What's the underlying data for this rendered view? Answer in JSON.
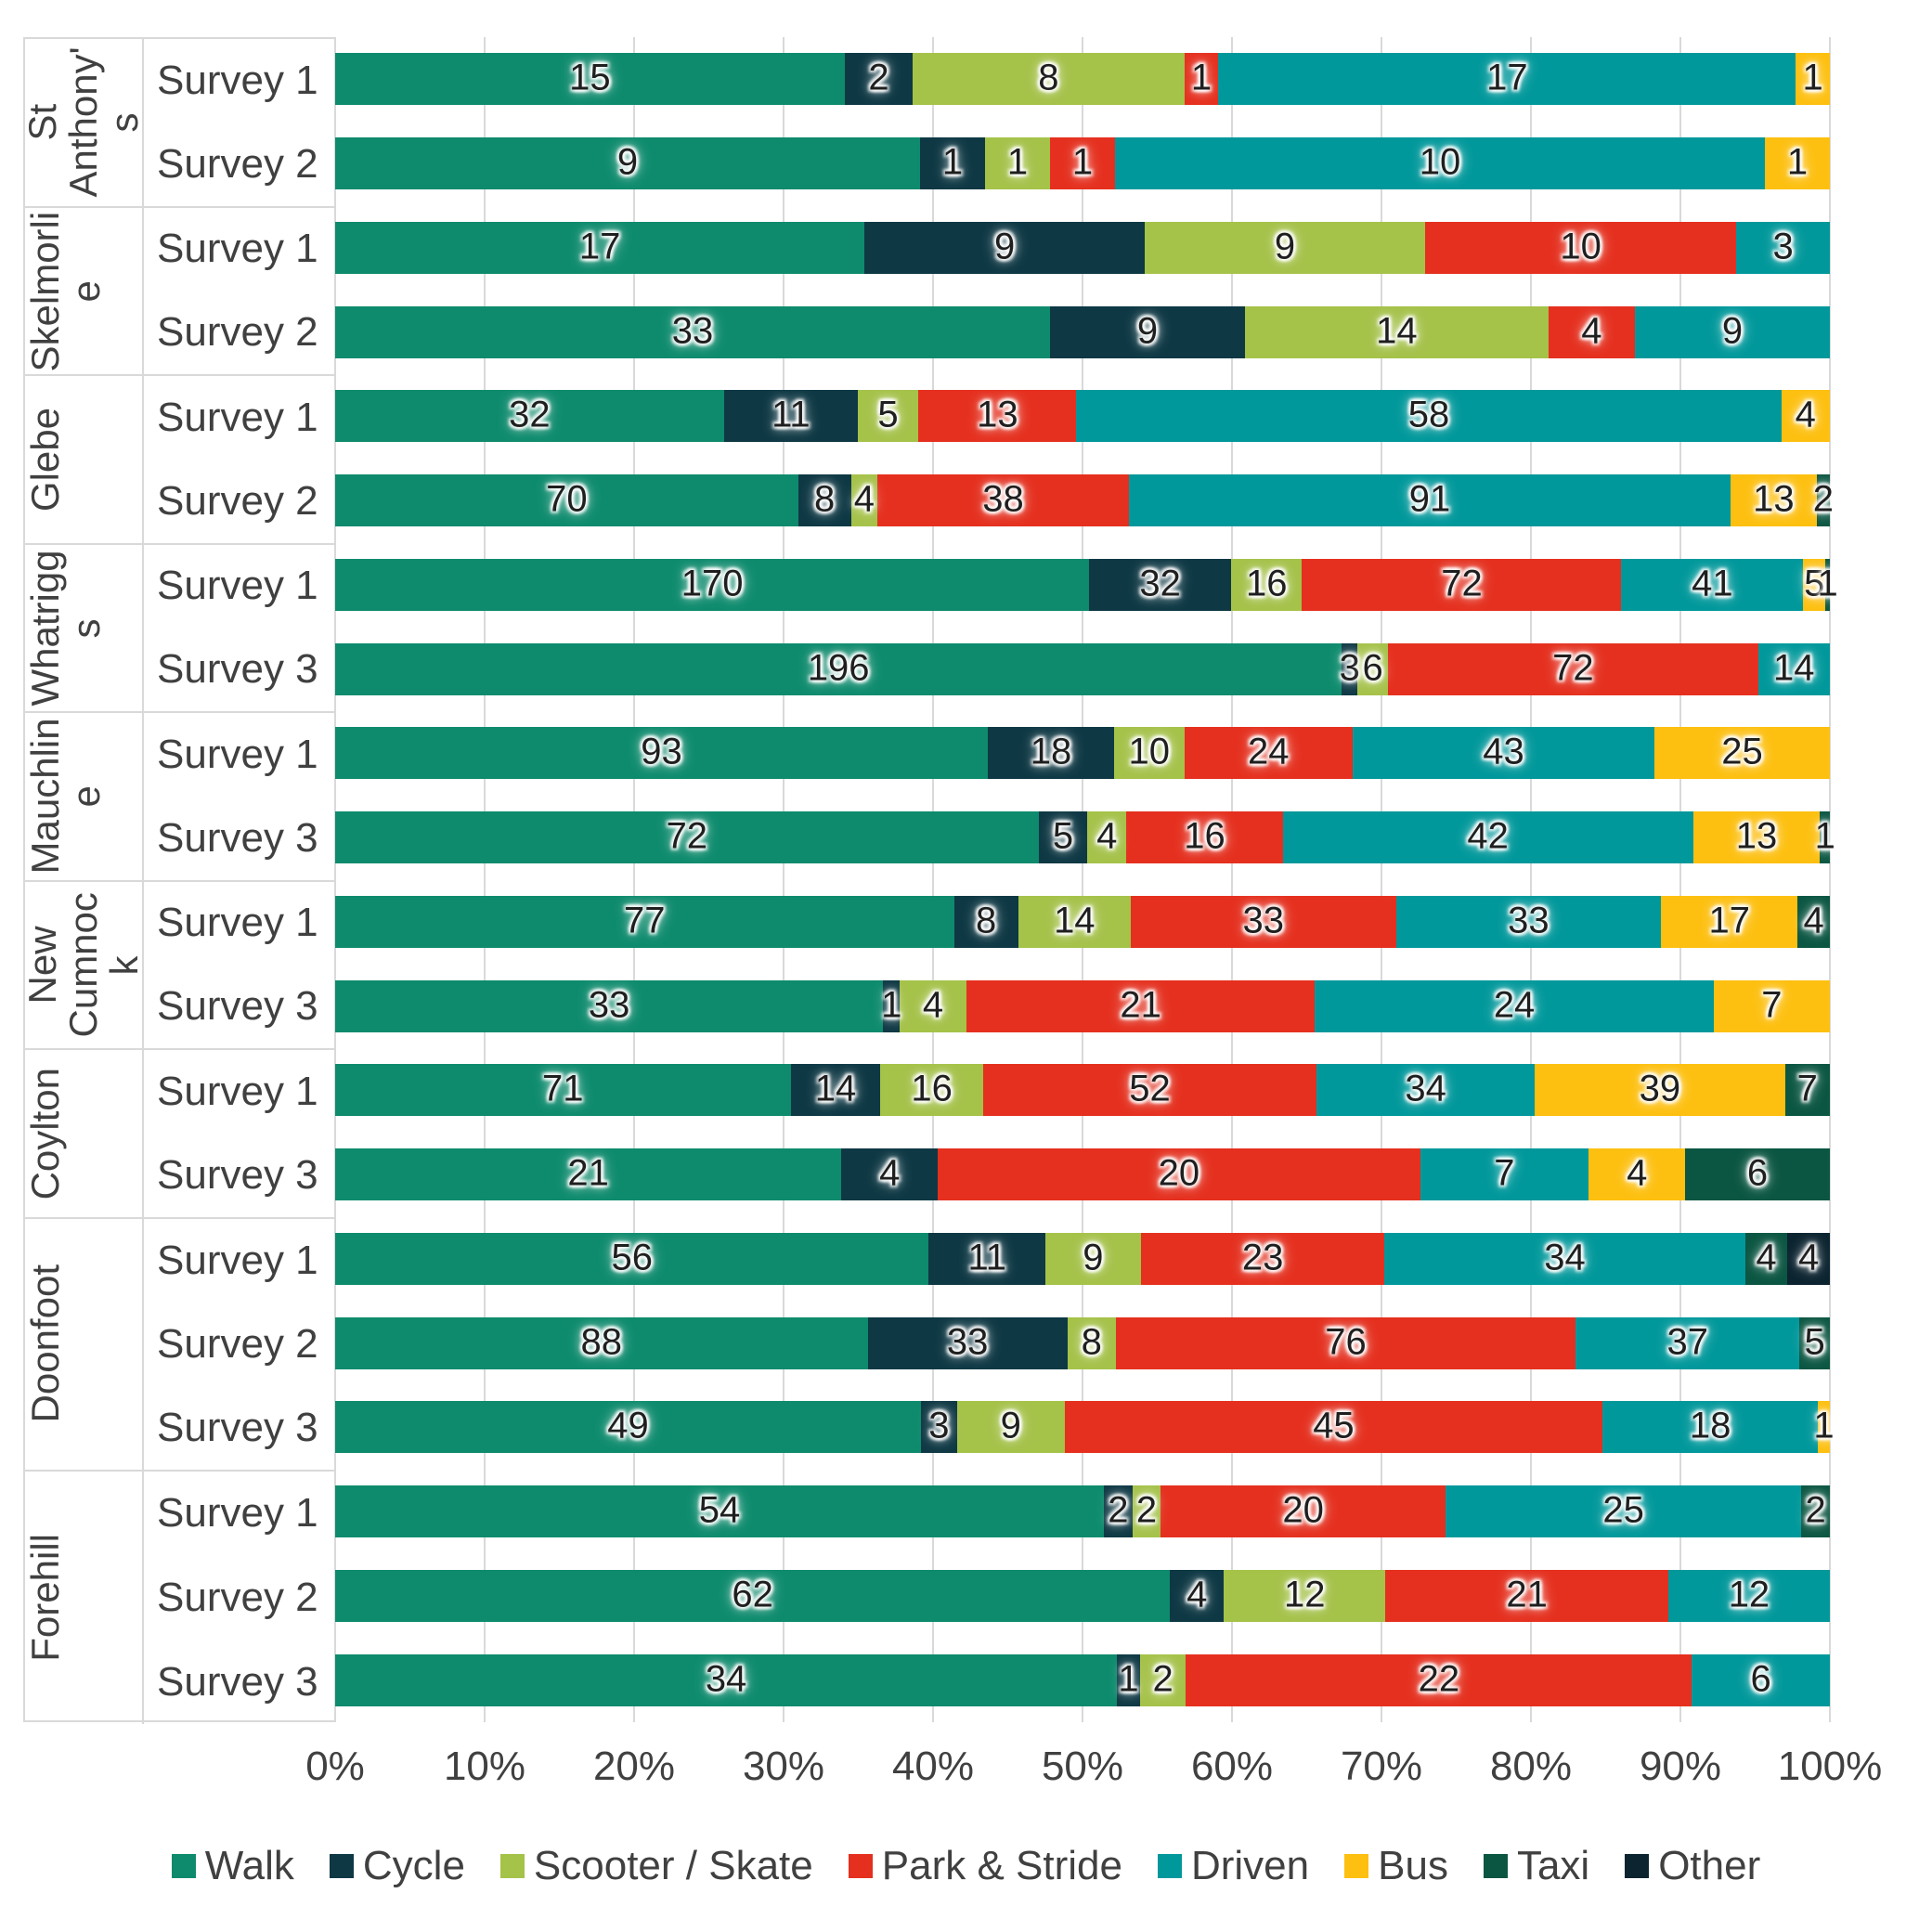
{
  "chart_data": {
    "type": "bar",
    "subtype": "100%-stacked-horizontal",
    "grid": true,
    "legend_position": "bottom",
    "axis_text_color": "#404040",
    "gridline_color": "#D9D9D9",
    "x_axis": {
      "min": 0,
      "max": 100,
      "ticks": [
        "0%",
        "10%",
        "20%",
        "30%",
        "40%",
        "50%",
        "60%",
        "70%",
        "80%",
        "90%",
        "100%"
      ]
    },
    "series": [
      {
        "key": "walk",
        "label": "Walk",
        "color": "#0E8B6D"
      },
      {
        "key": "cycle",
        "label": "Cycle",
        "color": "#0E3844"
      },
      {
        "key": "scooter",
        "label": "Scooter / Skate",
        "color": "#A5C249"
      },
      {
        "key": "pas",
        "label": "Park & Stride",
        "color": "#E5301F"
      },
      {
        "key": "driven",
        "label": "Driven",
        "color": "#00989B"
      },
      {
        "key": "bus",
        "label": "Bus",
        "color": "#FDC010"
      },
      {
        "key": "taxi",
        "label": "Taxi",
        "color": "#0B5642"
      },
      {
        "key": "other",
        "label": "Other",
        "color": "#0C2430"
      }
    ],
    "groups": [
      {
        "school": "St Anthony's",
        "surveys": [
          {
            "label": "Survey 1",
            "values": {
              "walk": 15,
              "cycle": 2,
              "scooter": 8,
              "pas": 1,
              "driven": 17,
              "bus": 1
            }
          },
          {
            "label": "Survey 2",
            "values": {
              "walk": 9,
              "cycle": 1,
              "scooter": 1,
              "pas": 1,
              "driven": 10,
              "bus": 1
            }
          }
        ]
      },
      {
        "school": "Skelmorlie",
        "surveys": [
          {
            "label": "Survey 1",
            "values": {
              "walk": 17,
              "cycle": 9,
              "scooter": 9,
              "pas": 10,
              "driven": 3
            }
          },
          {
            "label": "Survey 2",
            "values": {
              "walk": 33,
              "cycle": 9,
              "scooter": 14,
              "pas": 4,
              "driven": 9
            }
          }
        ]
      },
      {
        "school": "Glebe",
        "surveys": [
          {
            "label": "Survey 1",
            "values": {
              "walk": 32,
              "cycle": 11,
              "scooter": 5,
              "pas": 13,
              "driven": 58,
              "bus": 4
            }
          },
          {
            "label": "Survey 2",
            "values": {
              "walk": 70,
              "cycle": 8,
              "scooter": 4,
              "pas": 38,
              "driven": 91,
              "bus": 13,
              "taxi": 2
            }
          }
        ]
      },
      {
        "school": "Whatriggs",
        "surveys": [
          {
            "label": "Survey 1",
            "values": {
              "walk": 170,
              "cycle": 32,
              "scooter": 16,
              "pas": 72,
              "driven": 41,
              "bus": 5,
              "taxi": 1
            }
          },
          {
            "label": "Survey 3",
            "values": {
              "walk": 196,
              "cycle": 3,
              "scooter": 6,
              "pas": 72,
              "driven": 14
            }
          }
        ]
      },
      {
        "school": "Mauchline",
        "surveys": [
          {
            "label": "Survey 1",
            "values": {
              "walk": 93,
              "cycle": 18,
              "scooter": 10,
              "pas": 24,
              "driven": 43,
              "bus": 25
            }
          },
          {
            "label": "Survey 3",
            "values": {
              "walk": 72,
              "cycle": 5,
              "scooter": 4,
              "pas": 16,
              "driven": 42,
              "bus": 13,
              "taxi": 1
            }
          }
        ]
      },
      {
        "school": "New Cumnock",
        "surveys": [
          {
            "label": "Survey 1",
            "values": {
              "walk": 77,
              "cycle": 8,
              "scooter": 14,
              "pas": 33,
              "driven": 33,
              "bus": 17,
              "taxi": 4
            }
          },
          {
            "label": "Survey 3",
            "values": {
              "walk": 33,
              "cycle": 1,
              "scooter": 4,
              "pas": 21,
              "driven": 24,
              "bus": 7
            }
          }
        ]
      },
      {
        "school": "Coylton",
        "surveys": [
          {
            "label": "Survey 1",
            "values": {
              "walk": 71,
              "cycle": 14,
              "scooter": 16,
              "pas": 52,
              "driven": 34,
              "bus": 39,
              "taxi": 7
            }
          },
          {
            "label": "Survey 3",
            "values": {
              "walk": 21,
              "cycle": 4,
              "pas": 20,
              "driven": 7,
              "bus": 4,
              "taxi": 6
            }
          }
        ]
      },
      {
        "school": "Doonfoot",
        "surveys": [
          {
            "label": "Survey 1",
            "values": {
              "walk": 56,
              "cycle": 11,
              "scooter": 9,
              "pas": 23,
              "driven": 34,
              "taxi": 4,
              "other": 4
            }
          },
          {
            "label": "Survey 2",
            "values": {
              "walk": 88,
              "cycle": 33,
              "scooter": 8,
              "pas": 76,
              "driven": 37,
              "taxi": 5
            }
          },
          {
            "label": "Survey 3",
            "values": {
              "walk": 49,
              "cycle": 3,
              "scooter": 9,
              "pas": 45,
              "driven": 18,
              "bus": 1
            }
          }
        ]
      },
      {
        "school": "Forehill",
        "surveys": [
          {
            "label": "Survey 1",
            "values": {
              "walk": 54,
              "cycle": 2,
              "scooter": 2,
              "pas": 20,
              "driven": 25,
              "taxi": 2
            }
          },
          {
            "label": "Survey 2",
            "values": {
              "walk": 62,
              "cycle": 4,
              "scooter": 12,
              "pas": 21,
              "driven": 12
            }
          },
          {
            "label": "Survey 3",
            "values": {
              "walk": 34,
              "cycle": 1,
              "scooter": 2,
              "pas": 22,
              "driven": 6
            }
          }
        ]
      },
      {
        "_note_legend": ""
      }
    ],
    "legend": [
      "Walk",
      "Cycle",
      "Scooter / Skate",
      "Park & Stride",
      "Driven",
      "Bus",
      "Taxi",
      "Other"
    ]
  }
}
